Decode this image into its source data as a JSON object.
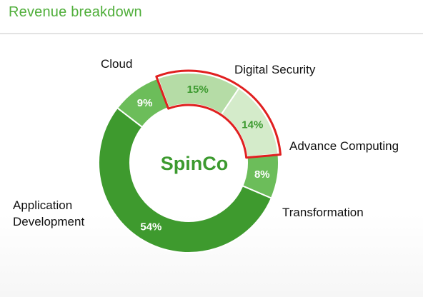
{
  "title": "Revenue breakdown",
  "chart_data": {
    "type": "pie",
    "style": "donut",
    "center_label": "SpinCo",
    "slices": [
      {
        "name": "Digital Security",
        "value": 15,
        "label": "15%",
        "color": "#b5dca6",
        "label_color": "#3c9a2f",
        "highlighted": true
      },
      {
        "name": "Advance Computing",
        "value": 14,
        "label": "14%",
        "color": "#d4ebca",
        "label_color": "#3c9a2f",
        "highlighted": true
      },
      {
        "name": "Transformation",
        "value": 8,
        "label": "8%",
        "color": "#6cbd5a",
        "label_color": "#ffffff",
        "highlighted": false
      },
      {
        "name": "Application Development",
        "value": 54,
        "label": "54%",
        "color": "#3e9a2e",
        "label_color": "#ffffff",
        "highlighted": false
      },
      {
        "name": "Cloud",
        "value": 9,
        "label": "9%",
        "color": "#6cbd5a",
        "label_color": "#ffffff",
        "highlighted": false
      }
    ],
    "external_labels": [
      {
        "lines": [
          "Digital Security"
        ]
      },
      {
        "lines": [
          "Advance Computing"
        ]
      },
      {
        "lines": [
          "Transformation"
        ]
      },
      {
        "lines": [
          "Application",
          "Development"
        ]
      },
      {
        "lines": [
          "Cloud"
        ]
      }
    ],
    "highlight_color": "#e02020"
  }
}
